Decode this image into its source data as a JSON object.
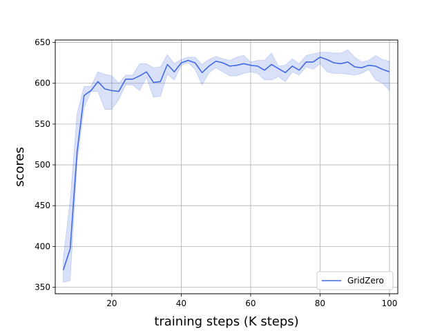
{
  "chart_data": {
    "type": "line",
    "title": "",
    "xlabel": "training steps (K steps)",
    "ylabel": "scores",
    "xlim": [
      3.7,
      102.4
    ],
    "ylim": [
      342,
      653
    ],
    "xticks": [
      20,
      40,
      60,
      80,
      100
    ],
    "yticks": [
      350,
      400,
      450,
      500,
      550,
      600,
      650
    ],
    "grid": true,
    "legend_position": "lower-right",
    "series": [
      {
        "name": "GridZero",
        "color": "#4169e1",
        "band_color": "#4169e1",
        "x": [
          6,
          8,
          10,
          12,
          14,
          16,
          18,
          20,
          22,
          24,
          26,
          28,
          30,
          32,
          34,
          36,
          38,
          40,
          42,
          44,
          46,
          48,
          50,
          52,
          54,
          56,
          58,
          60,
          62,
          64,
          66,
          68,
          70,
          72,
          74,
          76,
          78,
          80,
          82,
          84,
          86,
          88,
          90,
          92,
          94,
          96,
          98,
          100
        ],
        "mean": [
          371,
          397,
          516,
          585,
          591,
          602,
          593,
          591,
          590,
          605,
          605,
          609,
          614,
          601,
          602,
          623,
          614,
          625,
          628,
          625,
          613,
          621,
          627,
          625,
          621,
          622,
          624,
          622,
          621,
          616,
          623,
          618,
          613,
          621,
          616,
          626,
          626,
          632,
          629,
          625,
          624,
          626,
          620,
          619,
          622,
          621,
          617,
          614
        ],
        "upper": [
          385,
          457,
          563,
          596,
          596,
          614,
          611,
          609,
          600,
          610,
          610,
          624,
          624,
          619,
          620,
          635,
          624,
          629,
          632,
          632,
          623,
          629,
          633,
          630,
          628,
          632,
          634,
          626,
          628,
          628,
          637,
          621,
          622,
          630,
          624,
          634,
          636,
          638,
          638,
          637,
          637,
          641,
          632,
          626,
          628,
          634,
          629,
          627
        ],
        "lower": [
          356,
          358,
          503,
          570,
          590,
          590,
          568,
          568,
          580,
          598,
          598,
          591,
          607,
          583,
          584,
          611,
          604,
          622,
          625,
          617,
          598,
          613,
          619,
          614,
          609,
          609,
          612,
          614,
          612,
          604,
          604,
          608,
          602,
          614,
          610,
          620,
          617,
          624,
          614,
          612,
          612,
          611,
          610,
          612,
          617,
          604,
          600,
          591
        ]
      }
    ]
  }
}
